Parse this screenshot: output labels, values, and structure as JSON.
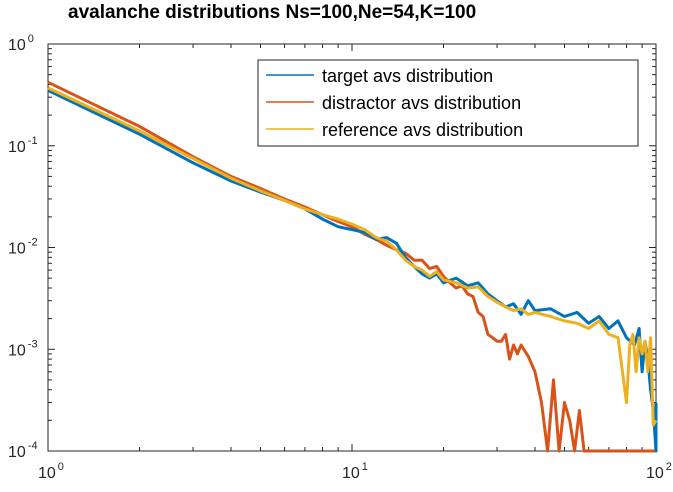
{
  "chart_data": {
    "type": "line",
    "title": "avalanche distributions Ns=100,Ne=54,K=100",
    "xscale": "log",
    "yscale": "log",
    "xlim": [
      1,
      100
    ],
    "ylim": [
      0.0001,
      1
    ],
    "x_ticks": [
      {
        "base": "10",
        "exp": "0",
        "value": 1
      },
      {
        "base": "10",
        "exp": "1",
        "value": 10
      },
      {
        "base": "10",
        "exp": "2",
        "value": 100
      }
    ],
    "y_ticks": [
      {
        "base": "10",
        "exp": "0",
        "value": 1
      },
      {
        "base": "10",
        "exp": "-1",
        "value": 0.1
      },
      {
        "base": "10",
        "exp": "-2",
        "value": 0.01
      },
      {
        "base": "10",
        "exp": "-3",
        "value": 0.001
      },
      {
        "base": "10",
        "exp": "-4",
        "value": 0.0001
      }
    ],
    "legend_location": "top-right",
    "grid": false,
    "series": [
      {
        "name": "target avs distribution",
        "color": "#0072BD",
        "points": [
          [
            1,
            0.35
          ],
          [
            2,
            0.13
          ],
          [
            3,
            0.068
          ],
          [
            4,
            0.045
          ],
          [
            5,
            0.035
          ],
          [
            6,
            0.029
          ],
          [
            7,
            0.024
          ],
          [
            8,
            0.019
          ],
          [
            9,
            0.016
          ],
          [
            10,
            0.015
          ],
          [
            11,
            0.014
          ],
          [
            12,
            0.012
          ],
          [
            13,
            0.0125
          ],
          [
            14,
            0.011
          ],
          [
            15,
            0.008
          ],
          [
            16,
            0.0065
          ],
          [
            17,
            0.0055
          ],
          [
            18,
            0.005
          ],
          [
            19,
            0.0055
          ],
          [
            20,
            0.0045
          ],
          [
            22,
            0.005
          ],
          [
            24,
            0.0042
          ],
          [
            26,
            0.0045
          ],
          [
            28,
            0.0035
          ],
          [
            30,
            0.003
          ],
          [
            32,
            0.0026
          ],
          [
            34,
            0.0028
          ],
          [
            36,
            0.0022
          ],
          [
            38,
            0.003
          ],
          [
            40,
            0.0024
          ],
          [
            45,
            0.0025
          ],
          [
            50,
            0.0021
          ],
          [
            55,
            0.0023
          ],
          [
            60,
            0.0018
          ],
          [
            65,
            0.0021
          ],
          [
            70,
            0.0016
          ],
          [
            75,
            0.0019
          ],
          [
            80,
            0.0013
          ],
          [
            85,
            0.0011
          ],
          [
            88,
            0.0016
          ],
          [
            90,
            0.0006
          ],
          [
            92,
            0.0012
          ],
          [
            94,
            0.0008
          ],
          [
            96,
            0.0004
          ],
          [
            98,
            0.00025
          ],
          [
            100,
            0.0001
          ],
          [
            101,
            0.0003
          ]
        ]
      },
      {
        "name": "distractor avs distribution",
        "color": "#D95319",
        "points": [
          [
            1,
            0.42
          ],
          [
            2,
            0.155
          ],
          [
            3,
            0.078
          ],
          [
            4,
            0.05
          ],
          [
            5,
            0.038
          ],
          [
            6,
            0.03
          ],
          [
            7,
            0.025
          ],
          [
            8,
            0.021
          ],
          [
            9,
            0.018
          ],
          [
            10,
            0.016
          ],
          [
            11,
            0.0135
          ],
          [
            12,
            0.012
          ],
          [
            13,
            0.0105
          ],
          [
            14,
            0.0095
          ],
          [
            15,
            0.0088
          ],
          [
            16,
            0.0075
          ],
          [
            17,
            0.0075
          ],
          [
            18,
            0.0062
          ],
          [
            19,
            0.0065
          ],
          [
            20,
            0.0052
          ],
          [
            21,
            0.0045
          ],
          [
            22,
            0.004
          ],
          [
            23,
            0.0042
          ],
          [
            24,
            0.0035
          ],
          [
            25,
            0.0033
          ],
          [
            26,
            0.0023
          ],
          [
            27,
            0.0021
          ],
          [
            28,
            0.0014
          ],
          [
            29,
            0.0013
          ],
          [
            30,
            0.0012
          ],
          [
            31,
            0.0012
          ],
          [
            32,
            0.0014
          ],
          [
            33,
            0.0008
          ],
          [
            34,
            0.0011
          ],
          [
            35,
            0.0009
          ],
          [
            36,
            0.0011
          ],
          [
            38,
            0.00085
          ],
          [
            40,
            0.0006
          ],
          [
            42,
            0.0003
          ],
          [
            44,
            0.0001
          ],
          [
            46,
            0.0005
          ],
          [
            48,
            0.0001
          ],
          [
            50,
            0.0003
          ],
          [
            52,
            0.0002
          ],
          [
            54,
            0.0001
          ],
          [
            56,
            0.00025
          ],
          [
            58,
            0.0001
          ],
          [
            99,
            0.0001
          ]
        ]
      },
      {
        "name": "reference avs distribution",
        "color": "#EDB120",
        "points": [
          [
            1,
            0.37
          ],
          [
            2,
            0.14
          ],
          [
            3,
            0.075
          ],
          [
            4,
            0.048
          ],
          [
            5,
            0.036
          ],
          [
            6,
            0.029
          ],
          [
            7,
            0.024
          ],
          [
            8,
            0.021
          ],
          [
            9,
            0.019
          ],
          [
            10,
            0.017
          ],
          [
            11,
            0.015
          ],
          [
            12,
            0.0125
          ],
          [
            13,
            0.0115
          ],
          [
            14,
            0.0095
          ],
          [
            15,
            0.0075
          ],
          [
            16,
            0.0065
          ],
          [
            17,
            0.006
          ],
          [
            18,
            0.0052
          ],
          [
            19,
            0.0058
          ],
          [
            20,
            0.0048
          ],
          [
            22,
            0.0045
          ],
          [
            24,
            0.004
          ],
          [
            26,
            0.0041
          ],
          [
            28,
            0.0033
          ],
          [
            30,
            0.0029
          ],
          [
            32,
            0.0026
          ],
          [
            34,
            0.0024
          ],
          [
            36,
            0.0025
          ],
          [
            38,
            0.0022
          ],
          [
            40,
            0.0023
          ],
          [
            45,
            0.0021
          ],
          [
            50,
            0.0019
          ],
          [
            55,
            0.0018
          ],
          [
            60,
            0.0016
          ],
          [
            65,
            0.0019
          ],
          [
            70,
            0.0014
          ],
          [
            75,
            0.0013
          ],
          [
            80,
            0.0003
          ],
          [
            82,
            0.0011
          ],
          [
            84,
            0.0014
          ],
          [
            86,
            0.0006
          ],
          [
            88,
            0.0013
          ],
          [
            90,
            0.0009
          ],
          [
            92,
            0.0012
          ],
          [
            94,
            0.0006
          ],
          [
            96,
            0.0013
          ],
          [
            98,
            0.00018
          ],
          [
            100,
            0.0002
          ]
        ]
      }
    ]
  }
}
